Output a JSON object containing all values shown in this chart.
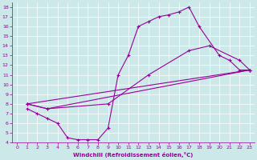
{
  "xlabel": "Windchill (Refroidissement éolien,°C)",
  "bg_color": "#cce8e8",
  "line_color": "#990099",
  "xlim": [
    -0.5,
    23.5
  ],
  "ylim": [
    4,
    18.5
  ],
  "xticks": [
    0,
    1,
    2,
    3,
    4,
    5,
    6,
    7,
    8,
    9,
    10,
    11,
    12,
    13,
    14,
    15,
    16,
    17,
    18,
    19,
    20,
    21,
    22,
    23
  ],
  "yticks": [
    4,
    5,
    6,
    7,
    8,
    9,
    10,
    11,
    12,
    13,
    14,
    15,
    16,
    17,
    18
  ],
  "curve1_x": [
    1,
    2,
    3,
    4,
    5,
    6,
    7,
    8,
    9,
    10,
    11,
    12,
    13,
    14,
    15,
    16,
    17,
    18,
    20,
    21,
    22,
    23
  ],
  "curve1_y": [
    7.5,
    7.0,
    6.5,
    6.0,
    4.5,
    4.3,
    4.3,
    4.3,
    5.5,
    11.0,
    13.0,
    16.0,
    16.5,
    17.0,
    17.2,
    17.5,
    18.0,
    16.0,
    13.0,
    12.5,
    11.5,
    11.5
  ],
  "curve2_x": [
    1,
    3,
    9,
    13,
    17,
    19,
    22,
    23
  ],
  "curve2_y": [
    8.0,
    7.5,
    8.0,
    11.0,
    13.5,
    14.0,
    12.5,
    11.5
  ],
  "curve3_x": [
    1,
    3,
    23
  ],
  "curve3_y": [
    8.0,
    7.5,
    11.5
  ],
  "curve4_x": [
    1,
    23
  ],
  "curve4_y": [
    8.0,
    11.5
  ]
}
